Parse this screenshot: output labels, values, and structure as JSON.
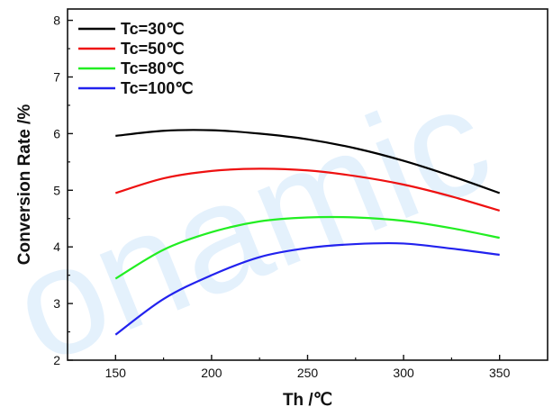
{
  "watermark": "onamic",
  "colors": {
    "Tc=30": "#000000",
    "Tc=50": "#ee1111",
    "Tc=80": "#22ee22",
    "Tc=100": "#2222ee",
    "watermark": "#cfe6fb"
  },
  "chart_data": {
    "type": "line",
    "title": "",
    "xlabel": "Th /℃",
    "ylabel": "Conversion Rate /%",
    "xlim": [
      125,
      375
    ],
    "ylim": [
      2,
      8.2
    ],
    "xticks": [
      150,
      200,
      250,
      300,
      350
    ],
    "yticks": [
      2,
      3,
      4,
      5,
      6,
      7,
      8
    ],
    "grid": false,
    "legend": "top-left",
    "x": [
      150,
      175,
      200,
      225,
      250,
      275,
      300,
      325,
      350
    ],
    "series": [
      {
        "name": "Tc=30℃",
        "color": "#000000",
        "values": [
          5.96,
          6.05,
          6.06,
          6.0,
          5.9,
          5.74,
          5.52,
          5.25,
          4.95
        ]
      },
      {
        "name": "Tc=50℃",
        "color": "#ee1111",
        "values": [
          4.95,
          5.21,
          5.34,
          5.38,
          5.35,
          5.25,
          5.1,
          4.89,
          4.64
        ]
      },
      {
        "name": "Tc=80℃",
        "color": "#22ee22",
        "values": [
          3.44,
          3.95,
          4.26,
          4.45,
          4.52,
          4.52,
          4.46,
          4.33,
          4.16
        ]
      },
      {
        "name": "Tc=100℃",
        "color": "#2222ee",
        "values": [
          2.45,
          3.08,
          3.5,
          3.82,
          3.98,
          4.05,
          4.06,
          3.97,
          3.86
        ]
      }
    ]
  }
}
